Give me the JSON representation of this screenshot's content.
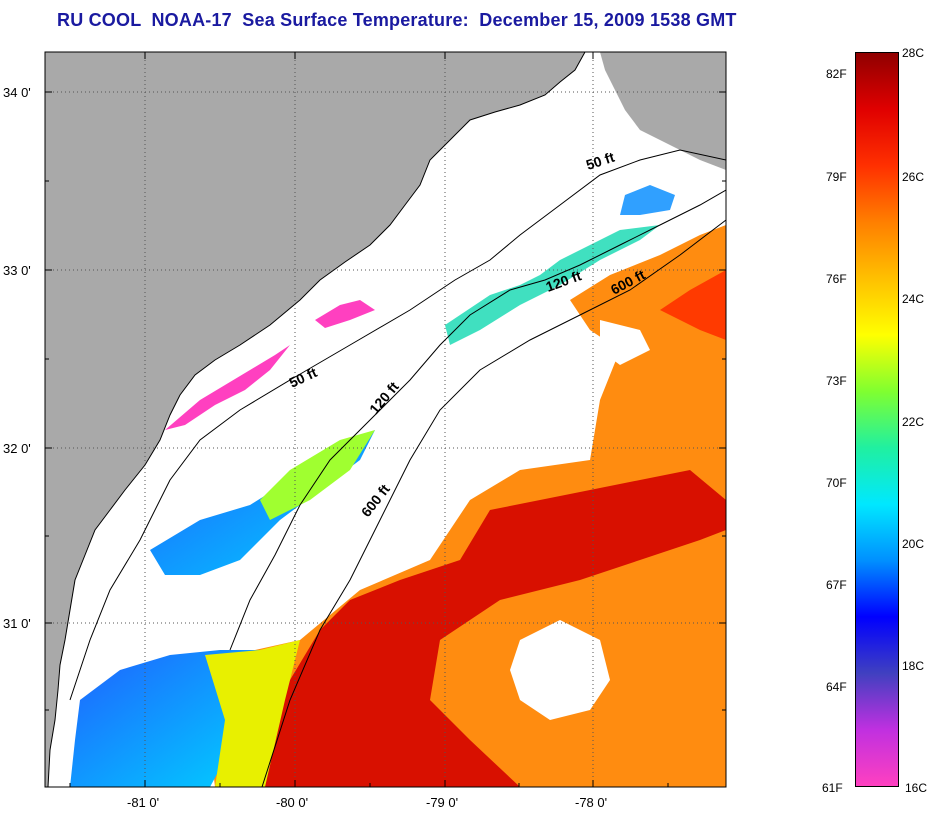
{
  "title": "RU COOL  NOAA-17  Sea Surface Temperature:  December 15, 2009 1538 GMT",
  "map": {
    "lat_labels": [
      "34 0'",
      "33 0'",
      "32 0'",
      "31 0'"
    ],
    "lon_labels": [
      "-81 0'",
      "-80 0'",
      "-79 0'",
      "-78 0'"
    ],
    "contours": [
      "50 ft",
      "50 ft",
      "120 ft",
      "120 ft",
      "600 ft",
      "600 ft"
    ],
    "colors": {
      "land": "#a9a9a9",
      "nodata": "#ffffff"
    }
  },
  "colorbar": {
    "celsius": [
      "28C",
      "26C",
      "24C",
      "22C",
      "20C",
      "18C",
      "16C"
    ],
    "fahrenheit": [
      "82F",
      "79F",
      "76F",
      "73F",
      "70F",
      "67F",
      "64F",
      "61F"
    ],
    "gradient": [
      "#ff40c0",
      "#c030e0",
      "#4040c0",
      "#0000ff",
      "#0090ff",
      "#00e8ff",
      "#20f0a0",
      "#80ff30",
      "#ffff00",
      "#ffc000",
      "#ff7f00",
      "#ff3000",
      "#e00000",
      "#900000"
    ]
  }
}
